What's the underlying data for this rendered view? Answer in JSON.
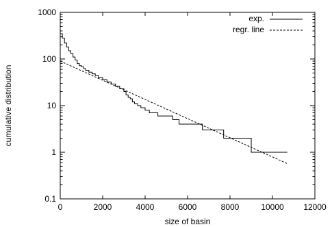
{
  "chart_data": {
    "type": "line",
    "title": "",
    "xlabel": "size of basin",
    "ylabel": "cumulative distribution",
    "x_scale": "linear",
    "y_scale": "log",
    "xlim": [
      0,
      12000
    ],
    "ylim": [
      0.1,
      1000
    ],
    "xticks": [
      0,
      2000,
      4000,
      6000,
      8000,
      10000,
      12000
    ],
    "xtick_labels": [
      "0",
      "2000",
      "4000",
      "6000",
      "8000",
      "10000",
      "12000"
    ],
    "yticks": [
      0.1,
      1,
      10,
      100,
      1000
    ],
    "ytick_labels": [
      "0.1",
      "1",
      "10",
      "100",
      "1000"
    ],
    "grid": false,
    "legend_position": "top-right",
    "series": [
      {
        "name": "exp.",
        "style": "solid",
        "step": true,
        "color": "#000000",
        "points": [
          [
            0,
            350
          ],
          [
            100,
            280
          ],
          [
            200,
            220
          ],
          [
            300,
            180
          ],
          [
            400,
            150
          ],
          [
            500,
            130
          ],
          [
            600,
            110
          ],
          [
            700,
            95
          ],
          [
            800,
            80
          ],
          [
            900,
            72
          ],
          [
            1000,
            68
          ],
          [
            1100,
            62
          ],
          [
            1200,
            57
          ],
          [
            1350,
            52
          ],
          [
            1500,
            48
          ],
          [
            1650,
            44
          ],
          [
            1800,
            40
          ],
          [
            2000,
            36
          ],
          [
            2200,
            32
          ],
          [
            2400,
            29
          ],
          [
            2600,
            26
          ],
          [
            2800,
            23
          ],
          [
            3000,
            20
          ],
          [
            3100,
            17
          ],
          [
            3200,
            15
          ],
          [
            3300,
            14
          ],
          [
            3400,
            12
          ],
          [
            3500,
            11
          ],
          [
            3650,
            10
          ],
          [
            3800,
            9
          ],
          [
            4000,
            8
          ],
          [
            4200,
            7
          ],
          [
            4600,
            7
          ],
          [
            4600,
            6
          ],
          [
            5300,
            6
          ],
          [
            5300,
            5
          ],
          [
            5600,
            5
          ],
          [
            5600,
            4
          ],
          [
            6700,
            4
          ],
          [
            6700,
            3
          ],
          [
            7700,
            3
          ],
          [
            7700,
            2
          ],
          [
            9000,
            2
          ],
          [
            9000,
            1
          ],
          [
            10700,
            1
          ]
        ]
      },
      {
        "name": "regr. line",
        "style": "dashed",
        "color": "#000000",
        "points": [
          [
            0,
            90
          ],
          [
            10700,
            0.57
          ]
        ]
      }
    ]
  }
}
